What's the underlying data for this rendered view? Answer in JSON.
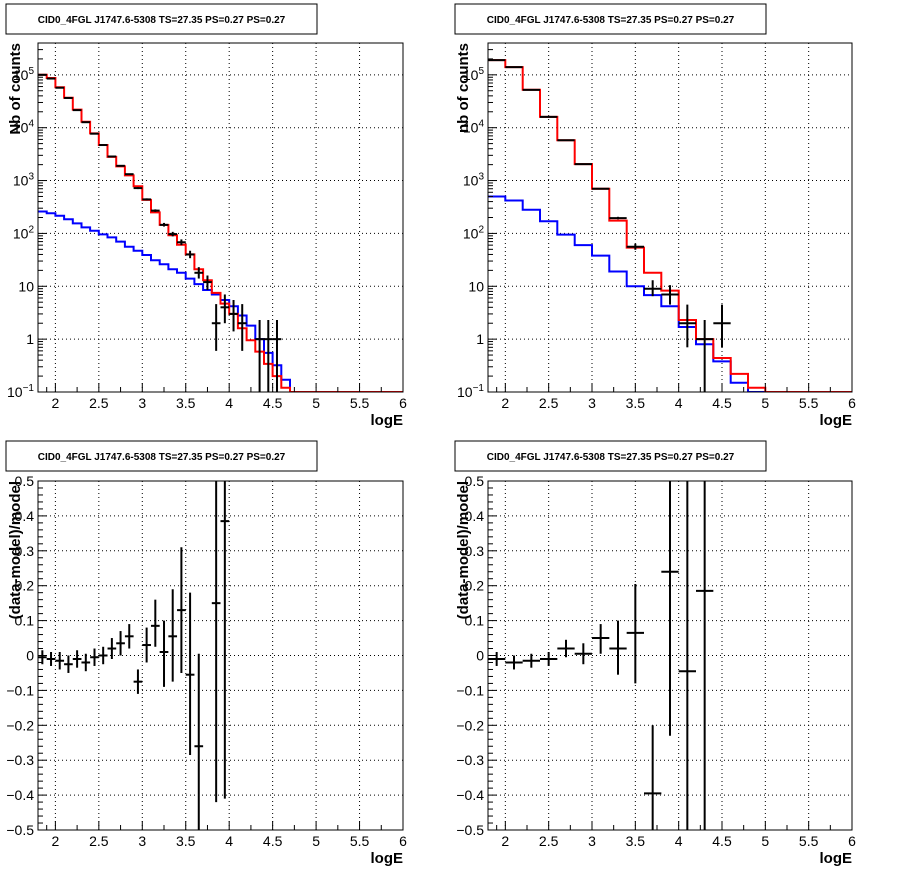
{
  "colors": {
    "data": "#000000",
    "total_model": "#ff0000",
    "component_model": "#0000ff",
    "grid": "#000000",
    "background": "#ffffff"
  },
  "chart_data": [
    {
      "id": "top-left",
      "type": "line",
      "title": "CID0_4FGL J1747.6-5308 TS=27.35 PS=0.27 PS=0.27",
      "xlabel": "logE",
      "ylabel": "Nb of counts",
      "xlim": [
        1.8,
        6.0
      ],
      "ylim": [
        0.1,
        400000
      ],
      "ylog": true,
      "grid": true,
      "x_ticks": [
        2,
        2.5,
        3,
        3.5,
        4,
        4.5,
        5,
        5.5,
        6
      ],
      "x_tick_labels": [
        "2",
        "2.5",
        "3",
        "3.5",
        "4",
        "4.5",
        "5",
        "5.5",
        "6"
      ],
      "y_ticks": [
        0.1,
        1,
        10,
        100,
        1000,
        10000,
        100000
      ],
      "y_tick_labels": [
        {
          "base": "10",
          "exp": "−1"
        },
        {
          "base": "1",
          "exp": ""
        },
        {
          "base": "10",
          "exp": ""
        },
        {
          "base": "10",
          "exp": "2"
        },
        {
          "base": "10",
          "exp": "3"
        },
        {
          "base": "10",
          "exp": "4"
        },
        {
          "base": "10",
          "exp": "5"
        }
      ],
      "bin_edges": [
        1.8,
        1.9,
        2.0,
        2.1,
        2.2,
        2.3,
        2.4,
        2.5,
        2.6,
        2.7,
        2.8,
        2.9,
        3.0,
        3.1,
        3.2,
        3.3,
        3.4,
        3.5,
        3.6,
        3.7,
        3.8,
        3.9,
        4.0,
        4.1,
        4.2,
        4.3,
        4.4,
        4.5,
        4.6,
        4.7,
        4.8,
        4.9,
        5.0,
        5.1,
        5.2,
        5.3,
        5.4,
        5.5,
        5.6,
        5.7,
        5.8,
        5.9,
        6.0
      ],
      "series": [
        {
          "style": "step",
          "color_key": "component_model",
          "values": [
            260,
            240,
            215,
            185,
            155,
            130,
            112,
            96,
            84,
            70,
            56,
            47,
            39,
            31,
            26,
            21,
            18,
            14,
            11,
            8.5,
            7,
            5.5,
            4.2,
            2.8,
            1.8,
            1.0,
            0.55,
            0.32,
            0.17,
            0.1,
            0.1,
            0.1,
            0.1,
            0.1,
            0.1,
            0.1,
            0.1,
            0.1,
            0.1,
            0.1,
            0.1,
            0.1
          ]
        },
        {
          "style": "step",
          "color_key": "total_model",
          "values": [
            100000,
            87000,
            58000,
            37000,
            22000,
            13000,
            7800,
            4700,
            2800,
            1850,
            1250,
            780,
            430,
            250,
            145,
            92,
            61,
            40,
            21,
            13,
            7.5,
            4.7,
            3.0,
            1.6,
            0.95,
            0.58,
            0.34,
            0.2,
            0.12,
            0.1,
            0.1,
            0.1,
            0.1,
            0.1,
            0.1,
            0.1,
            0.1,
            0.1,
            0.1,
            0.1,
            0.1,
            0.1
          ]
        },
        {
          "style": "errorbar",
          "color_key": "data",
          "points": [
            {
              "x": 1.85,
              "y": 100000,
              "ylo": 99000,
              "yhi": 101000
            },
            {
              "x": 1.95,
              "y": 85000,
              "ylo": 84000,
              "yhi": 86000
            },
            {
              "x": 2.05,
              "y": 57000,
              "ylo": 56500,
              "yhi": 57500
            },
            {
              "x": 2.15,
              "y": 36500,
              "ylo": 36000,
              "yhi": 37000
            },
            {
              "x": 2.25,
              "y": 21500,
              "ylo": 21000,
              "yhi": 22000
            },
            {
              "x": 2.35,
              "y": 12700,
              "ylo": 12500,
              "yhi": 12900
            },
            {
              "x": 2.45,
              "y": 7700,
              "ylo": 7600,
              "yhi": 7800
            },
            {
              "x": 2.55,
              "y": 4700,
              "ylo": 4600,
              "yhi": 4800
            },
            {
              "x": 2.65,
              "y": 2850,
              "ylo": 2800,
              "yhi": 2900
            },
            {
              "x": 2.75,
              "y": 1900,
              "ylo": 1850,
              "yhi": 1950
            },
            {
              "x": 2.85,
              "y": 1320,
              "ylo": 1280,
              "yhi": 1360
            },
            {
              "x": 2.95,
              "y": 720,
              "ylo": 690,
              "yhi": 750
            },
            {
              "x": 3.05,
              "y": 440,
              "ylo": 420,
              "yhi": 460
            },
            {
              "x": 3.15,
              "y": 270,
              "ylo": 255,
              "yhi": 285
            },
            {
              "x": 3.25,
              "y": 145,
              "ylo": 135,
              "yhi": 158
            },
            {
              "x": 3.35,
              "y": 97,
              "ylo": 88,
              "yhi": 107
            },
            {
              "x": 3.45,
              "y": 68,
              "ylo": 60,
              "yhi": 77
            },
            {
              "x": 3.55,
              "y": 40,
              "ylo": 34,
              "yhi": 47
            },
            {
              "x": 3.65,
              "y": 18,
              "ylo": 14,
              "yhi": 23
            },
            {
              "x": 3.75,
              "y": 12,
              "ylo": 8.5,
              "yhi": 16
            },
            {
              "x": 3.85,
              "y": 2,
              "ylo": 0.6,
              "yhi": 4.6
            },
            {
              "x": 3.95,
              "y": 4,
              "ylo": 2,
              "yhi": 7
            },
            {
              "x": 4.05,
              "y": 3,
              "ylo": 1.4,
              "yhi": 5.5
            },
            {
              "x": 4.15,
              "y": 2,
              "ylo": 0.6,
              "yhi": 4.6
            },
            {
              "x": 4.35,
              "y": 1,
              "ylo": 0.1,
              "yhi": 2.3
            },
            {
              "x": 4.45,
              "y": 1,
              "ylo": 0.1,
              "yhi": 2.3
            },
            {
              "x": 4.55,
              "y": 1,
              "ylo": 0.1,
              "yhi": 2.3
            }
          ]
        }
      ]
    },
    {
      "id": "top-right",
      "type": "line",
      "title": "CID0_4FGL J1747.6-5308 TS=27.35 PS=0.27 PS=0.27",
      "xlabel": "logE",
      "ylabel": "nb of counts",
      "xlim": [
        1.8,
        6.0
      ],
      "ylim": [
        0.1,
        400000
      ],
      "ylog": true,
      "grid": true,
      "x_ticks": [
        2,
        2.5,
        3,
        3.5,
        4,
        4.5,
        5,
        5.5,
        6
      ],
      "x_tick_labels": [
        "2",
        "2.5",
        "3",
        "3.5",
        "4",
        "4.5",
        "5",
        "5.5",
        "6"
      ],
      "y_ticks": [
        0.1,
        1,
        10,
        100,
        1000,
        10000,
        100000
      ],
      "y_tick_labels": [
        {
          "base": "10",
          "exp": "−1"
        },
        {
          "base": "1",
          "exp": ""
        },
        {
          "base": "10",
          "exp": ""
        },
        {
          "base": "10",
          "exp": "2"
        },
        {
          "base": "10",
          "exp": "3"
        },
        {
          "base": "10",
          "exp": "4"
        },
        {
          "base": "10",
          "exp": "5"
        }
      ],
      "bin_edges": [
        1.8,
        2.0,
        2.2,
        2.4,
        2.6,
        2.8,
        3.0,
        3.2,
        3.4,
        3.6,
        3.8,
        4.0,
        4.2,
        4.4,
        4.6,
        4.8,
        5.0,
        5.2,
        5.4,
        5.6,
        5.8,
        6.0
      ],
      "series": [
        {
          "style": "step",
          "color_key": "component_model",
          "values": [
            500,
            420,
            280,
            170,
            95,
            60,
            38,
            19,
            10,
            6.8,
            4.2,
            1.7,
            0.8,
            0.38,
            0.15,
            0.1,
            0.1,
            0.1,
            0.1,
            0.1,
            0.1
          ]
        },
        {
          "style": "step",
          "color_key": "total_model",
          "values": [
            190000,
            140000,
            52000,
            16000,
            5800,
            2050,
            700,
            175,
            54,
            18,
            8.3,
            2.3,
            1.0,
            0.44,
            0.22,
            0.12,
            0.1,
            0.1,
            0.1,
            0.1,
            0.1
          ]
        },
        {
          "style": "errorbar",
          "color_key": "data",
          "points": [
            {
              "x": 1.9,
              "y": 190000,
              "ylo": 189000,
              "yhi": 191000
            },
            {
              "x": 2.1,
              "y": 140000,
              "ylo": 139000,
              "yhi": 141000
            },
            {
              "x": 2.3,
              "y": 52000,
              "ylo": 51500,
              "yhi": 52500
            },
            {
              "x": 2.5,
              "y": 16000,
              "ylo": 15800,
              "yhi": 16200
            },
            {
              "x": 2.7,
              "y": 5800,
              "ylo": 5700,
              "yhi": 5900
            },
            {
              "x": 2.9,
              "y": 2050,
              "ylo": 2000,
              "yhi": 2100
            },
            {
              "x": 3.1,
              "y": 700,
              "ylo": 680,
              "yhi": 720
            },
            {
              "x": 3.3,
              "y": 195,
              "ylo": 185,
              "yhi": 206
            },
            {
              "x": 3.5,
              "y": 56,
              "ylo": 49,
              "yhi": 64
            },
            {
              "x": 3.7,
              "y": 9,
              "ylo": 6.5,
              "yhi": 13
            },
            {
              "x": 3.9,
              "y": 7,
              "ylo": 4.5,
              "yhi": 10.5
            },
            {
              "x": 4.1,
              "y": 2,
              "ylo": 0.7,
              "yhi": 4.5
            },
            {
              "x": 4.3,
              "y": 1,
              "ylo": 0.1,
              "yhi": 2.3
            },
            {
              "x": 4.5,
              "y": 2,
              "ylo": 0.7,
              "yhi": 4.5
            }
          ]
        }
      ]
    },
    {
      "id": "bottom-left",
      "type": "scatter",
      "title": "CID0_4FGL J1747.6-5308 TS=27.35 PS=0.27 PS=0.27",
      "xlabel": "logE",
      "ylabel": "(data-model)/model",
      "xlim": [
        1.8,
        6.0
      ],
      "ylim": [
        -0.5,
        0.5
      ],
      "ylog": false,
      "grid": true,
      "x_ticks": [
        2,
        2.5,
        3,
        3.5,
        4,
        4.5,
        5,
        5.5,
        6
      ],
      "x_tick_labels": [
        "2",
        "2.5",
        "3",
        "3.5",
        "4",
        "4.5",
        "5",
        "5.5",
        "6"
      ],
      "y_ticks": [
        -0.5,
        -0.4,
        -0.3,
        -0.2,
        -0.1,
        0,
        0.1,
        0.2,
        0.3,
        0.4,
        0.5
      ],
      "y_tick_labels": [
        "−0.5",
        "−0.4",
        "−0.3",
        "−0.2",
        "−0.1",
        "0",
        "0.1",
        "0.2",
        "0.3",
        "0.4",
        "0.5"
      ],
      "series": [
        {
          "style": "errorbar",
          "color_key": "data",
          "xerr": 0.05,
          "points": [
            {
              "x": 1.85,
              "y": -0.005,
              "ylo": -0.025,
              "yhi": 0.015
            },
            {
              "x": 1.95,
              "y": -0.01,
              "ylo": -0.03,
              "yhi": 0.01
            },
            {
              "x": 2.05,
              "y": -0.015,
              "ylo": -0.04,
              "yhi": 0.01
            },
            {
              "x": 2.15,
              "y": -0.025,
              "ylo": -0.05,
              "yhi": 0.0
            },
            {
              "x": 2.25,
              "y": -0.01,
              "ylo": -0.035,
              "yhi": 0.015
            },
            {
              "x": 2.35,
              "y": -0.02,
              "ylo": -0.045,
              "yhi": 0.005
            },
            {
              "x": 2.45,
              "y": -0.005,
              "ylo": -0.03,
              "yhi": 0.02
            },
            {
              "x": 2.55,
              "y": 0.0,
              "ylo": -0.025,
              "yhi": 0.025
            },
            {
              "x": 2.65,
              "y": 0.02,
              "ylo": -0.01,
              "yhi": 0.05
            },
            {
              "x": 2.75,
              "y": 0.035,
              "ylo": 0.0,
              "yhi": 0.07
            },
            {
              "x": 2.85,
              "y": 0.055,
              "ylo": 0.02,
              "yhi": 0.09
            },
            {
              "x": 2.95,
              "y": -0.075,
              "ylo": -0.11,
              "yhi": -0.04
            },
            {
              "x": 3.05,
              "y": 0.03,
              "ylo": -0.02,
              "yhi": 0.08
            },
            {
              "x": 3.15,
              "y": 0.085,
              "ylo": 0.025,
              "yhi": 0.16
            },
            {
              "x": 3.25,
              "y": 0.01,
              "ylo": -0.09,
              "yhi": 0.1
            },
            {
              "x": 3.35,
              "y": 0.055,
              "ylo": -0.075,
              "yhi": 0.19
            },
            {
              "x": 3.45,
              "y": 0.13,
              "ylo": -0.05,
              "yhi": 0.31
            },
            {
              "x": 3.55,
              "y": -0.055,
              "ylo": -0.285,
              "yhi": 0.18
            },
            {
              "x": 3.65,
              "y": -0.26,
              "ylo": -0.5,
              "yhi": 0.005
            },
            {
              "x": 3.85,
              "y": 0.15,
              "ylo": -0.42,
              "yhi": 0.5
            },
            {
              "x": 3.95,
              "y": 0.385,
              "ylo": -0.41,
              "yhi": 0.5
            }
          ]
        }
      ]
    },
    {
      "id": "bottom-right",
      "type": "scatter",
      "title": "CID0_4FGL J1747.6-5308 TS=27.35 PS=0.27 PS=0.27",
      "xlabel": "logE",
      "ylabel": "(data-model)/model",
      "xlim": [
        1.8,
        6.0
      ],
      "ylim": [
        -0.5,
        0.5
      ],
      "ylog": false,
      "grid": true,
      "x_ticks": [
        2,
        2.5,
        3,
        3.5,
        4,
        4.5,
        5,
        5.5,
        6
      ],
      "x_tick_labels": [
        "2",
        "2.5",
        "3",
        "3.5",
        "4",
        "4.5",
        "5",
        "5.5",
        "6"
      ],
      "y_ticks": [
        -0.5,
        -0.4,
        -0.3,
        -0.2,
        -0.1,
        0,
        0.1,
        0.2,
        0.3,
        0.4,
        0.5
      ],
      "y_tick_labels": [
        "−0.5",
        "−0.4",
        "−0.3",
        "−0.2",
        "−0.1",
        "0",
        "0.1",
        "0.2",
        "0.3",
        "0.4",
        "0.5"
      ],
      "series": [
        {
          "style": "errorbar",
          "color_key": "data",
          "xerr": 0.1,
          "points": [
            {
              "x": 1.9,
              "y": -0.01,
              "ylo": -0.03,
              "yhi": 0.01
            },
            {
              "x": 2.1,
              "y": -0.02,
              "ylo": -0.04,
              "yhi": 0.0
            },
            {
              "x": 2.3,
              "y": -0.015,
              "ylo": -0.035,
              "yhi": 0.005
            },
            {
              "x": 2.5,
              "y": -0.01,
              "ylo": -0.03,
              "yhi": 0.01
            },
            {
              "x": 2.7,
              "y": 0.02,
              "ylo": -0.005,
              "yhi": 0.045
            },
            {
              "x": 2.9,
              "y": 0.005,
              "ylo": -0.025,
              "yhi": 0.035
            },
            {
              "x": 3.1,
              "y": 0.05,
              "ylo": 0.005,
              "yhi": 0.09
            },
            {
              "x": 3.3,
              "y": 0.02,
              "ylo": -0.055,
              "yhi": 0.1
            },
            {
              "x": 3.5,
              "y": 0.065,
              "ylo": -0.08,
              "yhi": 0.205
            },
            {
              "x": 3.7,
              "y": -0.395,
              "ylo": -0.5,
              "yhi": -0.2
            },
            {
              "x": 3.9,
              "y": 0.24,
              "ylo": -0.23,
              "yhi": 0.5
            },
            {
              "x": 4.1,
              "y": -0.045,
              "ylo": -0.5,
              "yhi": 0.5
            },
            {
              "x": 4.3,
              "y": 0.185,
              "ylo": -0.5,
              "yhi": 0.5
            }
          ]
        }
      ]
    }
  ]
}
